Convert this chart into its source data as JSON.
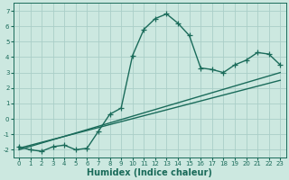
{
  "xlabel": "Humidex (Indice chaleur)",
  "ylabel": "",
  "xlim": [
    -0.5,
    23.5
  ],
  "ylim": [
    -2.5,
    7.5
  ],
  "bg_color": "#cce8e0",
  "line_color": "#1a6b5a",
  "grid_color": "#aacec8",
  "x_ticks": [
    0,
    1,
    2,
    3,
    4,
    5,
    6,
    7,
    8,
    9,
    10,
    11,
    12,
    13,
    14,
    15,
    16,
    17,
    18,
    19,
    20,
    21,
    22,
    23
  ],
  "y_ticks": [
    -2,
    -1,
    0,
    1,
    2,
    3,
    4,
    5,
    6,
    7
  ],
  "curve_x": [
    0,
    1,
    2,
    3,
    4,
    5,
    6,
    7,
    8,
    9,
    10,
    11,
    12,
    13,
    14,
    15,
    16,
    17,
    18,
    19,
    20,
    21,
    22,
    23
  ],
  "curve_y": [
    -1.8,
    -2.0,
    -2.1,
    -1.8,
    -1.7,
    -2.0,
    -1.9,
    -0.8,
    0.3,
    0.7,
    4.1,
    5.8,
    6.5,
    6.8,
    6.2,
    5.4,
    3.3,
    3.2,
    3.0,
    3.5,
    3.8,
    4.3,
    4.2,
    3.5
  ],
  "line1_x": [
    0,
    23
  ],
  "line1_y": [
    -1.9,
    2.5
  ],
  "line2_x": [
    0,
    23
  ],
  "line2_y": [
    -2.0,
    3.0
  ],
  "fontsize_xlabel": 7,
  "fontsize_tick": 5,
  "marker_size": 4,
  "line_width": 1.0
}
